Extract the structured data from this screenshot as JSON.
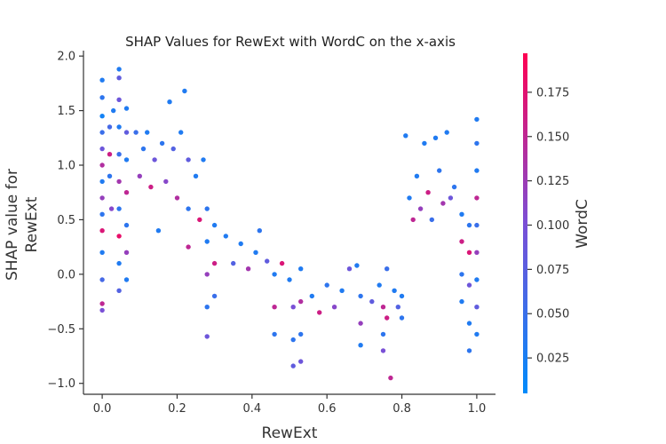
{
  "chart_data": {
    "type": "scatter",
    "title": "SHAP Values for RewExt with WordC on the x-axis",
    "xlabel": "RewExt",
    "ylabel_lines": [
      "SHAP value for",
      "RewExt"
    ],
    "xlim": [
      -0.05,
      1.05
    ],
    "ylim": [
      -1.1,
      2.05
    ],
    "xticks": [
      0.0,
      0.2,
      0.4,
      0.6,
      0.8,
      1.0
    ],
    "xtick_labels": [
      "0.0",
      "0.2",
      "0.4",
      "0.6",
      "0.8",
      "1.0"
    ],
    "yticks": [
      -1.0,
      -0.5,
      0.0,
      0.5,
      1.0,
      1.5,
      2.0
    ],
    "ytick_labels": [
      "−1.0",
      "−0.5",
      "0.0",
      "0.5",
      "1.0",
      "1.5",
      "2.0"
    ],
    "grid": false,
    "colorbar": {
      "label": "WordC",
      "range": [
        0.005,
        0.197
      ],
      "ticks": [
        0.025,
        0.05,
        0.075,
        0.1,
        0.125,
        0.15,
        0.175
      ],
      "tick_labels": [
        "0.025",
        "0.050",
        "0.075",
        "0.100",
        "0.125",
        "0.150",
        "0.175"
      ],
      "colors": [
        "#008bfb",
        "#ff0052"
      ]
    },
    "series": [
      {
        "points": [
          {
            "x": 0.0,
            "y": 1.78,
            "c": 0.03
          },
          {
            "x": 0.0,
            "y": 1.62,
            "c": 0.04
          },
          {
            "x": 0.0,
            "y": 1.45,
            "c": 0.02
          },
          {
            "x": 0.0,
            "y": 1.3,
            "c": 0.05
          },
          {
            "x": 0.0,
            "y": 1.15,
            "c": 0.09
          },
          {
            "x": 0.0,
            "y": 1.0,
            "c": 0.14
          },
          {
            "x": 0.0,
            "y": 0.85,
            "c": 0.03
          },
          {
            "x": 0.0,
            "y": 0.7,
            "c": 0.12
          },
          {
            "x": 0.0,
            "y": 0.55,
            "c": 0.04
          },
          {
            "x": 0.0,
            "y": 0.4,
            "c": 0.17
          },
          {
            "x": 0.0,
            "y": 0.2,
            "c": 0.03
          },
          {
            "x": 0.0,
            "y": -0.05,
            "c": 0.06
          },
          {
            "x": 0.0,
            "y": -0.27,
            "c": 0.15
          },
          {
            "x": 0.0,
            "y": -0.33,
            "c": 0.1
          },
          {
            "x": 0.02,
            "y": 1.35,
            "c": 0.06
          },
          {
            "x": 0.02,
            "y": 1.1,
            "c": 0.16
          },
          {
            "x": 0.02,
            "y": 0.9,
            "c": 0.04
          },
          {
            "x": 0.025,
            "y": 0.6,
            "c": 0.11
          },
          {
            "x": 0.03,
            "y": 1.5,
            "c": 0.03
          },
          {
            "x": 0.045,
            "y": 1.88,
            "c": 0.03
          },
          {
            "x": 0.045,
            "y": 1.8,
            "c": 0.08
          },
          {
            "x": 0.045,
            "y": 1.6,
            "c": 0.09
          },
          {
            "x": 0.045,
            "y": 1.35,
            "c": 0.03
          },
          {
            "x": 0.045,
            "y": 1.1,
            "c": 0.05
          },
          {
            "x": 0.045,
            "y": 0.85,
            "c": 0.13
          },
          {
            "x": 0.045,
            "y": 0.6,
            "c": 0.04
          },
          {
            "x": 0.045,
            "y": 0.35,
            "c": 0.18
          },
          {
            "x": 0.045,
            "y": 0.1,
            "c": 0.03
          },
          {
            "x": 0.045,
            "y": -0.15,
            "c": 0.07
          },
          {
            "x": 0.065,
            "y": 1.52,
            "c": 0.03
          },
          {
            "x": 0.065,
            "y": 1.3,
            "c": 0.08
          },
          {
            "x": 0.065,
            "y": 1.05,
            "c": 0.03
          },
          {
            "x": 0.065,
            "y": 0.75,
            "c": 0.15
          },
          {
            "x": 0.065,
            "y": 0.45,
            "c": 0.04
          },
          {
            "x": 0.065,
            "y": 0.2,
            "c": 0.12
          },
          {
            "x": 0.065,
            "y": -0.05,
            "c": 0.03
          },
          {
            "x": 0.09,
            "y": 1.3,
            "c": 0.05
          },
          {
            "x": 0.1,
            "y": 0.9,
            "c": 0.12
          },
          {
            "x": 0.11,
            "y": 1.15,
            "c": 0.04
          },
          {
            "x": 0.12,
            "y": 1.3,
            "c": 0.03
          },
          {
            "x": 0.13,
            "y": 0.8,
            "c": 0.16
          },
          {
            "x": 0.14,
            "y": 1.05,
            "c": 0.09
          },
          {
            "x": 0.15,
            "y": 0.4,
            "c": 0.03
          },
          {
            "x": 0.16,
            "y": 1.2,
            "c": 0.04
          },
          {
            "x": 0.17,
            "y": 0.85,
            "c": 0.11
          },
          {
            "x": 0.18,
            "y": 1.58,
            "c": 0.03
          },
          {
            "x": 0.19,
            "y": 1.15,
            "c": 0.07
          },
          {
            "x": 0.2,
            "y": 0.7,
            "c": 0.14
          },
          {
            "x": 0.21,
            "y": 1.3,
            "c": 0.03
          },
          {
            "x": 0.22,
            "y": 1.68,
            "c": 0.03
          },
          {
            "x": 0.23,
            "y": 1.05,
            "c": 0.08
          },
          {
            "x": 0.23,
            "y": 0.6,
            "c": 0.04
          },
          {
            "x": 0.23,
            "y": 0.25,
            "c": 0.15
          },
          {
            "x": 0.25,
            "y": 0.9,
            "c": 0.03
          },
          {
            "x": 0.26,
            "y": 0.5,
            "c": 0.17
          },
          {
            "x": 0.27,
            "y": 1.05,
            "c": 0.03
          },
          {
            "x": 0.28,
            "y": 0.6,
            "c": 0.04
          },
          {
            "x": 0.28,
            "y": 0.3,
            "c": 0.03
          },
          {
            "x": 0.28,
            "y": 0.0,
            "c": 0.12
          },
          {
            "x": 0.28,
            "y": -0.3,
            "c": 0.04
          },
          {
            "x": 0.28,
            "y": -0.57,
            "c": 0.09
          },
          {
            "x": 0.3,
            "y": 0.45,
            "c": 0.03
          },
          {
            "x": 0.3,
            "y": 0.1,
            "c": 0.16
          },
          {
            "x": 0.3,
            "y": -0.2,
            "c": 0.05
          },
          {
            "x": 0.33,
            "y": 0.35,
            "c": 0.03
          },
          {
            "x": 0.35,
            "y": 0.1,
            "c": 0.07
          },
          {
            "x": 0.37,
            "y": 0.28,
            "c": 0.03
          },
          {
            "x": 0.39,
            "y": 0.05,
            "c": 0.13
          },
          {
            "x": 0.41,
            "y": 0.2,
            "c": 0.03
          },
          {
            "x": 0.42,
            "y": 0.4,
            "c": 0.04
          },
          {
            "x": 0.44,
            "y": 0.12,
            "c": 0.08
          },
          {
            "x": 0.46,
            "y": 0.0,
            "c": 0.03
          },
          {
            "x": 0.46,
            "y": -0.3,
            "c": 0.15
          },
          {
            "x": 0.46,
            "y": -0.55,
            "c": 0.04
          },
          {
            "x": 0.48,
            "y": 0.1,
            "c": 0.17
          },
          {
            "x": 0.5,
            "y": -0.05,
            "c": 0.03
          },
          {
            "x": 0.51,
            "y": -0.3,
            "c": 0.1
          },
          {
            "x": 0.51,
            "y": -0.6,
            "c": 0.04
          },
          {
            "x": 0.51,
            "y": -0.84,
            "c": 0.08
          },
          {
            "x": 0.53,
            "y": 0.05,
            "c": 0.03
          },
          {
            "x": 0.53,
            "y": -0.25,
            "c": 0.14
          },
          {
            "x": 0.53,
            "y": -0.55,
            "c": 0.04
          },
          {
            "x": 0.53,
            "y": -0.8,
            "c": 0.09
          },
          {
            "x": 0.56,
            "y": -0.2,
            "c": 0.03
          },
          {
            "x": 0.58,
            "y": -0.35,
            "c": 0.16
          },
          {
            "x": 0.6,
            "y": -0.1,
            "c": 0.04
          },
          {
            "x": 0.62,
            "y": -0.3,
            "c": 0.11
          },
          {
            "x": 0.64,
            "y": -0.15,
            "c": 0.03
          },
          {
            "x": 0.66,
            "y": 0.05,
            "c": 0.09
          },
          {
            "x": 0.68,
            "y": 0.08,
            "c": 0.03
          },
          {
            "x": 0.69,
            "y": -0.2,
            "c": 0.04
          },
          {
            "x": 0.69,
            "y": -0.45,
            "c": 0.12
          },
          {
            "x": 0.69,
            "y": -0.65,
            "c": 0.03
          },
          {
            "x": 0.72,
            "y": -0.25,
            "c": 0.08
          },
          {
            "x": 0.74,
            "y": -0.1,
            "c": 0.03
          },
          {
            "x": 0.75,
            "y": -0.3,
            "c": 0.15
          },
          {
            "x": 0.75,
            "y": -0.55,
            "c": 0.04
          },
          {
            "x": 0.75,
            "y": -0.7,
            "c": 0.1
          },
          {
            "x": 0.76,
            "y": 0.05,
            "c": 0.05
          },
          {
            "x": 0.76,
            "y": -0.4,
            "c": 0.16
          },
          {
            "x": 0.77,
            "y": -0.95,
            "c": 0.15
          },
          {
            "x": 0.78,
            "y": -0.15,
            "c": 0.03
          },
          {
            "x": 0.79,
            "y": -0.3,
            "c": 0.07
          },
          {
            "x": 0.8,
            "y": -0.2,
            "c": 0.03
          },
          {
            "x": 0.8,
            "y": -0.4,
            "c": 0.04
          },
          {
            "x": 0.81,
            "y": 1.27,
            "c": 0.03
          },
          {
            "x": 0.82,
            "y": 0.7,
            "c": 0.03
          },
          {
            "x": 0.83,
            "y": 0.5,
            "c": 0.15
          },
          {
            "x": 0.84,
            "y": 0.9,
            "c": 0.03
          },
          {
            "x": 0.85,
            "y": 0.6,
            "c": 0.12
          },
          {
            "x": 0.86,
            "y": 1.2,
            "c": 0.03
          },
          {
            "x": 0.87,
            "y": 0.75,
            "c": 0.16
          },
          {
            "x": 0.88,
            "y": 0.5,
            "c": 0.05
          },
          {
            "x": 0.89,
            "y": 1.25,
            "c": 0.03
          },
          {
            "x": 0.9,
            "y": 0.95,
            "c": 0.04
          },
          {
            "x": 0.91,
            "y": 0.65,
            "c": 0.13
          },
          {
            "x": 0.92,
            "y": 1.3,
            "c": 0.03
          },
          {
            "x": 0.93,
            "y": 0.7,
            "c": 0.09
          },
          {
            "x": 0.94,
            "y": 0.8,
            "c": 0.04
          },
          {
            "x": 0.96,
            "y": 0.55,
            "c": 0.03
          },
          {
            "x": 0.96,
            "y": 0.3,
            "c": 0.16
          },
          {
            "x": 0.96,
            "y": 0.0,
            "c": 0.04
          },
          {
            "x": 0.96,
            "y": -0.25,
            "c": 0.03
          },
          {
            "x": 0.98,
            "y": 0.45,
            "c": 0.04
          },
          {
            "x": 0.98,
            "y": 0.2,
            "c": 0.17
          },
          {
            "x": 0.98,
            "y": -0.1,
            "c": 0.09
          },
          {
            "x": 0.98,
            "y": -0.45,
            "c": 0.03
          },
          {
            "x": 0.98,
            "y": -0.7,
            "c": 0.04
          },
          {
            "x": 1.0,
            "y": 1.42,
            "c": 0.03
          },
          {
            "x": 1.0,
            "y": 1.2,
            "c": 0.04
          },
          {
            "x": 1.0,
            "y": 0.95,
            "c": 0.03
          },
          {
            "x": 1.0,
            "y": 0.7,
            "c": 0.15
          },
          {
            "x": 1.0,
            "y": 0.45,
            "c": 0.05
          },
          {
            "x": 1.0,
            "y": 0.2,
            "c": 0.12
          },
          {
            "x": 1.0,
            "y": -0.05,
            "c": 0.03
          },
          {
            "x": 1.0,
            "y": -0.3,
            "c": 0.08
          },
          {
            "x": 1.0,
            "y": -0.55,
            "c": 0.03
          }
        ]
      }
    ]
  }
}
